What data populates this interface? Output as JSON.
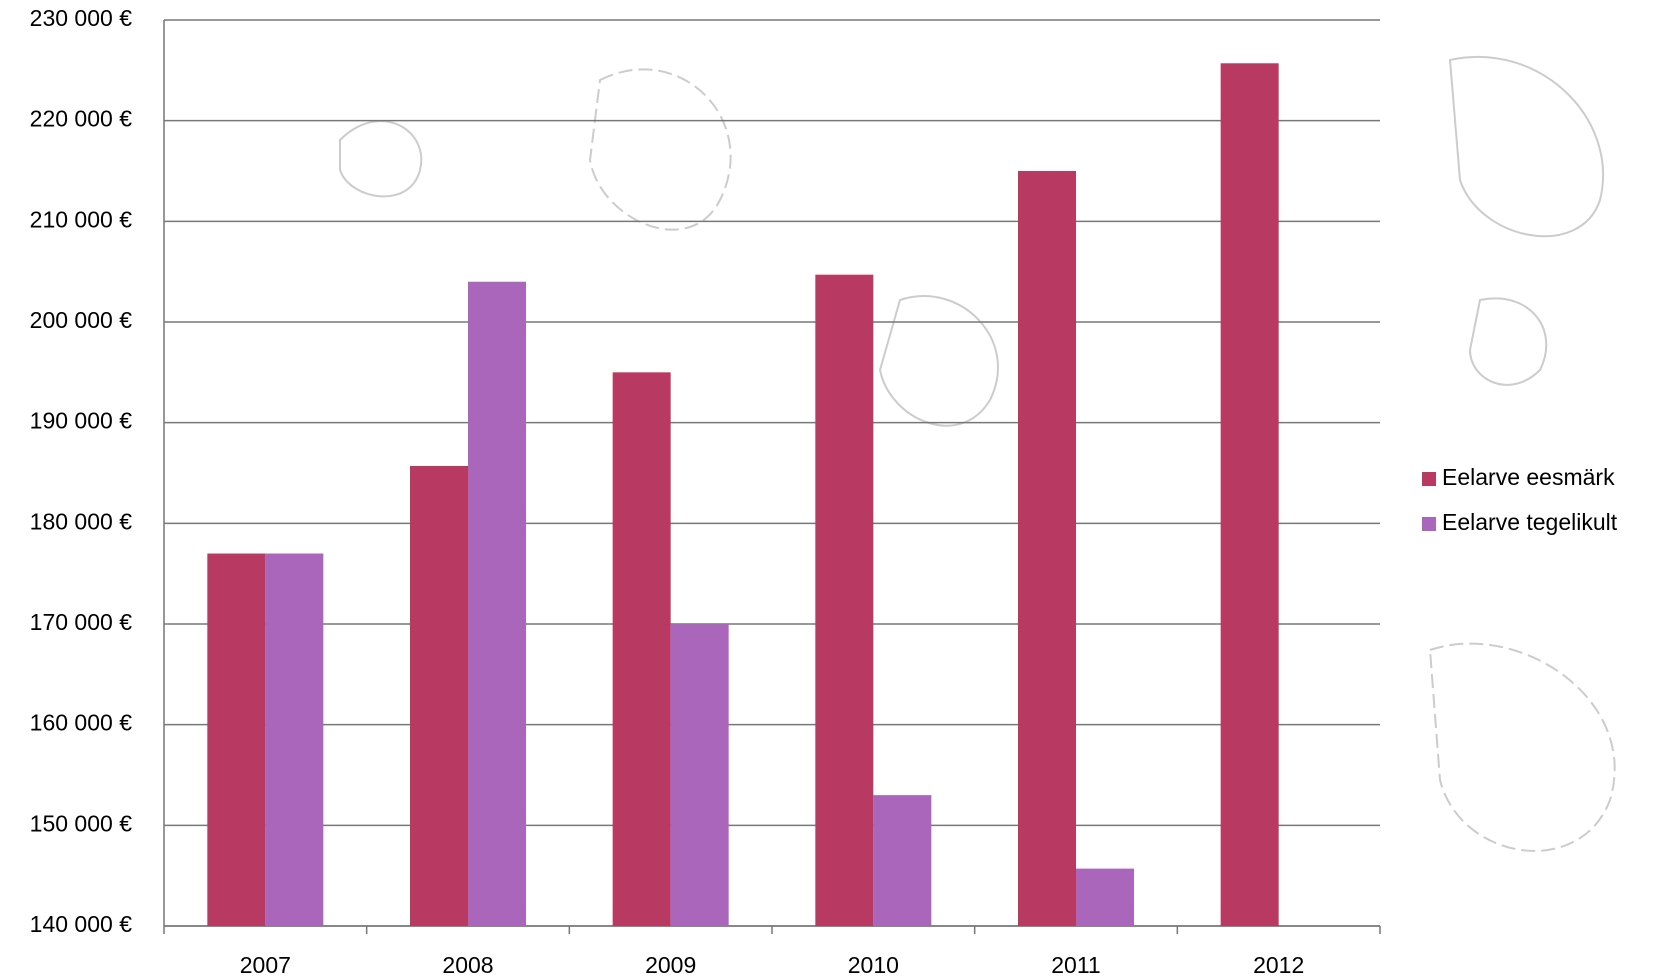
{
  "chart_data": {
    "type": "bar",
    "categories": [
      "2007",
      "2008",
      "2009",
      "2010",
      "2011",
      "2012"
    ],
    "series": [
      {
        "name": "Eelarve eesmärk",
        "color": "#b83a63",
        "values": [
          177000,
          185700,
          195000,
          204700,
          215000,
          225700
        ]
      },
      {
        "name": "Eelarve tegelikult",
        "color": "#a966bb",
        "values": [
          177000,
          204000,
          170000,
          153000,
          145700,
          null
        ]
      }
    ],
    "ylim": [
      140000,
      230000
    ],
    "yticks": [
      {
        "value": 140000,
        "label": "140 000 €"
      },
      {
        "value": 150000,
        "label": "150 000 €"
      },
      {
        "value": 160000,
        "label": "160 000 €"
      },
      {
        "value": 170000,
        "label": "170 000 €"
      },
      {
        "value": 180000,
        "label": "180 000 €"
      },
      {
        "value": 190000,
        "label": "190 000 €"
      },
      {
        "value": 200000,
        "label": "200 000 €"
      },
      {
        "value": 210000,
        "label": "210 000 €"
      },
      {
        "value": 220000,
        "label": "220 000 €"
      },
      {
        "value": 230000,
        "label": "230 000 €"
      }
    ],
    "grid": true,
    "legend": "right"
  }
}
